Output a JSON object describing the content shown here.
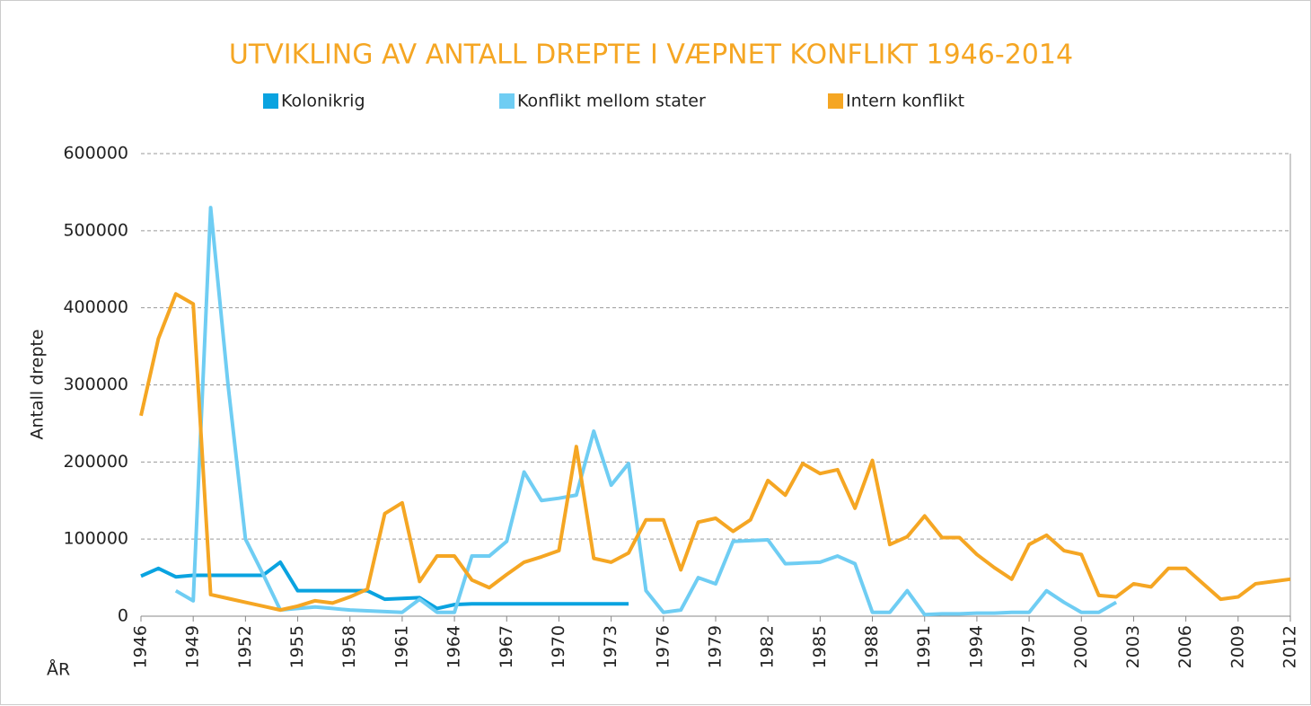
{
  "chart_data": {
    "type": "line",
    "title": "UTVIKLING AV ANTALL DREPTE I VÆPNET KONFLIKT 1946-2014",
    "ylabel": "Antall drepte",
    "xlabel": "ÅR",
    "x": [
      1946,
      1947,
      1948,
      1949,
      1950,
      1951,
      1952,
      1953,
      1954,
      1955,
      1956,
      1957,
      1958,
      1959,
      1960,
      1961,
      1962,
      1963,
      1964,
      1965,
      1966,
      1967,
      1968,
      1969,
      1970,
      1971,
      1972,
      1973,
      1974,
      1975,
      1976,
      1977,
      1978,
      1979,
      1980,
      1981,
      1982,
      1983,
      1984,
      1985,
      1986,
      1987,
      1988,
      1989,
      1990,
      1991,
      1992,
      1993,
      1994,
      1995,
      1996,
      1997,
      1998,
      1999,
      2000,
      2001,
      2002,
      2003,
      2004,
      2005,
      2006,
      2007,
      2008,
      2009,
      2010,
      2011,
      2012
    ],
    "series": [
      {
        "name": "Kolonikrig",
        "color": "#0aa3e0",
        "values": [
          52000,
          62000,
          51000,
          53000,
          53000,
          53000,
          53000,
          53000,
          70000,
          33000,
          33000,
          33000,
          33000,
          33000,
          22000,
          23000,
          24000,
          10000,
          15000,
          16000,
          16000,
          16000,
          16000,
          16000,
          16000,
          16000,
          16000,
          16000,
          16000,
          null,
          null,
          null,
          null,
          null,
          null,
          null,
          null,
          null,
          null,
          null,
          null,
          null,
          null,
          null,
          null,
          null,
          null,
          null,
          null,
          null,
          null,
          null,
          null,
          null,
          null,
          null,
          null,
          null,
          null,
          null,
          null,
          null,
          null,
          null,
          null,
          null,
          null
        ]
      },
      {
        "name": "Konflikt mellom stater",
        "color": "#6fcdf3",
        "values": [
          null,
          null,
          33000,
          20000,
          530000,
          300000,
          100000,
          55000,
          8000,
          10000,
          12000,
          10000,
          8000,
          7000,
          6000,
          5000,
          22000,
          5000,
          5000,
          78000,
          78000,
          97000,
          187000,
          150000,
          153000,
          157000,
          240000,
          170000,
          198000,
          33000,
          5000,
          8000,
          50000,
          42000,
          97000,
          98000,
          99000,
          68000,
          69000,
          70000,
          78000,
          68000,
          5000,
          5000,
          33000,
          2000,
          3000,
          3000,
          4000,
          4000,
          5000,
          5000,
          33000,
          18000,
          5000,
          5000,
          18000,
          null,
          null,
          null,
          null,
          null,
          null,
          null,
          null,
          null,
          null
        ]
      },
      {
        "name": "Intern konflikt",
        "color": "#f5a623",
        "values": [
          260000,
          360000,
          418000,
          405000,
          28000,
          23000,
          18000,
          13000,
          8000,
          13000,
          20000,
          17000,
          25000,
          35000,
          133000,
          147000,
          45000,
          78000,
          78000,
          47000,
          37000,
          54000,
          70000,
          77000,
          85000,
          220000,
          75000,
          70000,
          82000,
          125000,
          125000,
          60000,
          122000,
          127000,
          110000,
          125000,
          176000,
          157000,
          198000,
          185000,
          190000,
          140000,
          202000,
          93000,
          103000,
          130000,
          102000,
          102000,
          80000,
          63000,
          48000,
          93000,
          105000,
          85000,
          80000,
          27000,
          25000,
          42000,
          38000,
          62000,
          62000,
          42000,
          22000,
          25000,
          42000,
          45000,
          48000
        ]
      }
    ],
    "xlim": [
      1946,
      2012
    ],
    "xticks": [
      1946,
      1949,
      1952,
      1955,
      1958,
      1961,
      1964,
      1967,
      1970,
      1973,
      1976,
      1979,
      1982,
      1985,
      1988,
      1991,
      1994,
      1997,
      2000,
      2003,
      2006,
      2009,
      2012
    ],
    "ylim": [
      0,
      600000
    ],
    "yticks": [
      0,
      100000,
      200000,
      300000,
      400000,
      500000,
      600000
    ],
    "grid": true,
    "legend": "top"
  }
}
